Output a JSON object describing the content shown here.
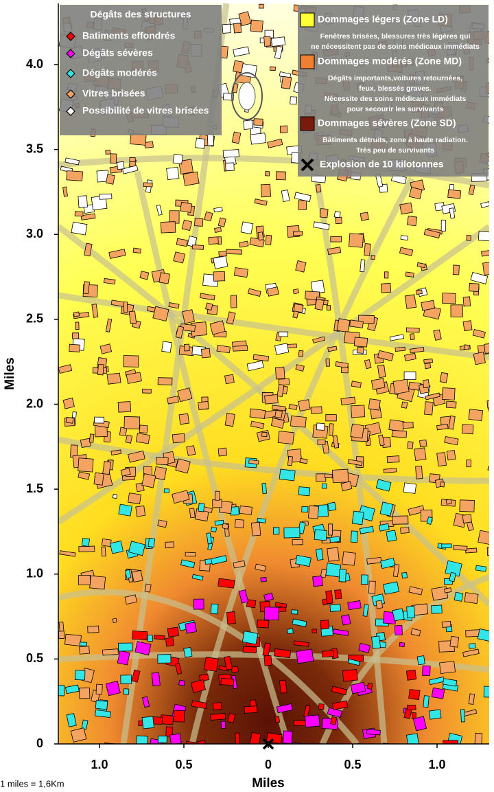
{
  "chart_data": {
    "type": "map",
    "xlabel": "Miles",
    "ylabel": "Miles",
    "xlim": [
      -1.244,
      1.309
    ],
    "ylim": [
      0,
      4.36
    ],
    "xticks": [
      {
        "value": -1,
        "label": "1.0"
      },
      {
        "value": -0.5,
        "label": "0.5"
      },
      0,
      0.5,
      {
        "value": 1,
        "label": "1.0"
      }
    ],
    "yticks": [
      {
        "value": 0,
        "label": "0"
      },
      0.5,
      {
        "value": 1,
        "label": "1.0"
      },
      1.5,
      {
        "value": 2,
        "label": "2.0"
      },
      2.5,
      {
        "value": 3,
        "label": "3.0"
      },
      3.5,
      {
        "value": 4,
        "label": "4.0"
      }
    ],
    "legend_structures": {
      "title": "Dégâts des structures",
      "items": [
        {
          "label": "Batiments effondrés",
          "color": "#ff0000"
        },
        {
          "label": "Dégâts sévères",
          "color": "#ff00ff"
        },
        {
          "label": "Dégâts modérés",
          "color": "#33e6e6"
        },
        {
          "label": "Vitres brisées",
          "color": "#f4a460"
        },
        {
          "label": "Possibilité de vitres brisées",
          "color": "#ffffff"
        }
      ]
    },
    "legend_zones": [
      {
        "label": "Dommages légers (Zone LD)",
        "color": "#ffff33",
        "description": [
          "Fenêtres brisées, blessures très légères qui",
          "ne nécessitent pas de soins médicaux immédiats"
        ]
      },
      {
        "label": "Dommages modérés (Zone MD)",
        "color": "#f08030",
        "description": [
          "Dégâts importants,voitures retournées,",
          "feux, blessés graves.",
          "Nécessite des soins médicaux immédiats",
          "pour secourir les survivants"
        ]
      },
      {
        "label": "Dommages sévères (Zone SD)",
        "color": "#7a1a0a",
        "description": [
          "Bâtiments détruits, zone à haute radiation.",
          "Très peu de survivants"
        ]
      }
    ],
    "explosion": {
      "label": "Explosion de 10 kilotonnes",
      "x": 0,
      "y": 0
    },
    "scale_note": "1 miles = 1,6Km"
  }
}
